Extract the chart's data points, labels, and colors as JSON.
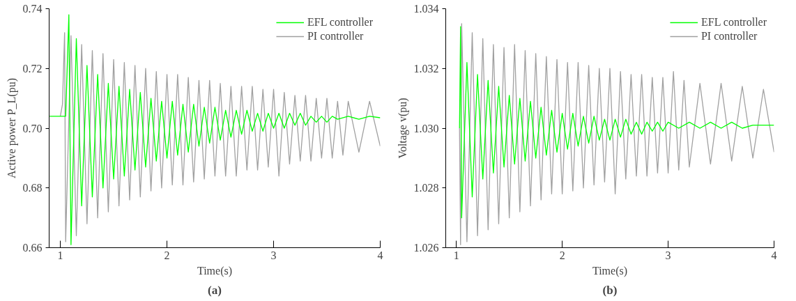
{
  "chart_data": [
    {
      "type": "line",
      "xlabel": "Time(s)",
      "ylabel": "Active power P_L(pu)",
      "annotations": [
        "(a)"
      ],
      "xlim": [
        0.895,
        4
      ],
      "xticks": [
        1,
        2,
        3,
        4
      ],
      "ylim": [
        0.66,
        0.74
      ],
      "yticks": [
        {
          "value": 0.66,
          "label": "0.66"
        },
        {
          "value": 0.68,
          "label": "0.68"
        },
        {
          "value": 0.7,
          "label": "0.70"
        },
        {
          "value": 0.72,
          "label": "0.72"
        },
        {
          "value": 0.74,
          "label": "0.74"
        }
      ],
      "grid": false,
      "legend": "top right",
      "line_style": "solid",
      "marker": "none",
      "series": [
        {
          "name": "EFL controller",
          "color": "#00ff00",
          "x": [
            0.9,
            1.0,
            1.05,
            1.08,
            1.1,
            1.15,
            1.2,
            1.25,
            1.3,
            1.35,
            1.4,
            1.45,
            1.5,
            1.55,
            1.6,
            1.65,
            1.7,
            1.75,
            1.8,
            1.85,
            1.9,
            1.95,
            2.0,
            2.05,
            2.1,
            2.15,
            2.2,
            2.25,
            2.3,
            2.35,
            2.4,
            2.45,
            2.5,
            2.55,
            2.6,
            2.65,
            2.7,
            2.75,
            2.8,
            2.85,
            2.9,
            2.95,
            3.0,
            3.05,
            3.1,
            3.15,
            3.2,
            3.25,
            3.3,
            3.35,
            3.4,
            3.45,
            3.5,
            3.55,
            3.6,
            3.7,
            3.8,
            3.9,
            4.0
          ],
          "values": [
            0.704,
            0.704,
            0.704,
            0.738,
            0.661,
            0.73,
            0.674,
            0.721,
            0.677,
            0.718,
            0.68,
            0.715,
            0.683,
            0.714,
            0.684,
            0.713,
            0.686,
            0.712,
            0.687,
            0.71,
            0.689,
            0.709,
            0.69,
            0.709,
            0.691,
            0.708,
            0.692,
            0.708,
            0.694,
            0.707,
            0.695,
            0.707,
            0.696,
            0.706,
            0.697,
            0.706,
            0.698,
            0.706,
            0.699,
            0.705,
            0.699,
            0.705,
            0.7,
            0.705,
            0.7,
            0.705,
            0.701,
            0.705,
            0.701,
            0.704,
            0.702,
            0.704,
            0.702,
            0.704,
            0.703,
            0.704,
            0.703,
            0.704,
            0.7035
          ]
        },
        {
          "name": "PI controller",
          "color": "#a0a0a0",
          "x": [
            1.0,
            1.02,
            1.04,
            1.05,
            1.1,
            1.15,
            1.2,
            1.25,
            1.3,
            1.35,
            1.4,
            1.45,
            1.5,
            1.55,
            1.6,
            1.65,
            1.7,
            1.75,
            1.8,
            1.85,
            1.9,
            1.95,
            2.0,
            2.05,
            2.1,
            2.15,
            2.2,
            2.25,
            2.3,
            2.35,
            2.4,
            2.45,
            2.5,
            2.55,
            2.6,
            2.65,
            2.7,
            2.75,
            2.8,
            2.85,
            2.9,
            2.95,
            3.0,
            3.05,
            3.1,
            3.15,
            3.2,
            3.25,
            3.3,
            3.35,
            3.4,
            3.45,
            3.5,
            3.55,
            3.6,
            3.65,
            3.7,
            3.8,
            3.9,
            4.0
          ],
          "values": [
            0.704,
            0.708,
            0.732,
            0.662,
            0.731,
            0.664,
            0.728,
            0.668,
            0.726,
            0.67,
            0.725,
            0.672,
            0.723,
            0.674,
            0.722,
            0.676,
            0.721,
            0.677,
            0.72,
            0.679,
            0.719,
            0.68,
            0.718,
            0.681,
            0.718,
            0.681,
            0.717,
            0.682,
            0.716,
            0.683,
            0.716,
            0.684,
            0.715,
            0.684,
            0.714,
            0.684,
            0.714,
            0.686,
            0.714,
            0.686,
            0.713,
            0.687,
            0.713,
            0.684,
            0.712,
            0.688,
            0.711,
            0.689,
            0.711,
            0.689,
            0.71,
            0.69,
            0.71,
            0.69,
            0.709,
            0.691,
            0.709,
            0.692,
            0.709,
            0.694
          ]
        }
      ]
    },
    {
      "type": "line",
      "xlabel": "Time(s)",
      "ylabel": "Voltage v(pu)",
      "annotations": [
        "(b)"
      ],
      "xlim": [
        0.9,
        4
      ],
      "xticks": [
        1,
        2,
        3,
        4
      ],
      "ylim": [
        1.026,
        1.034
      ],
      "yticks": [
        {
          "value": 1.026,
          "label": "1.026"
        },
        {
          "value": 1.028,
          "label": "1.028"
        },
        {
          "value": 1.03,
          "label": "1.030"
        },
        {
          "value": 1.032,
          "label": "1.032"
        },
        {
          "value": 1.034,
          "label": "1.034"
        }
      ],
      "grid": false,
      "legend": "top right",
      "line_style": "solid",
      "marker": "none",
      "series": [
        {
          "name": "EFL controller",
          "color": "#00ff00",
          "x": [
            1.03,
            1.04,
            1.05,
            1.1,
            1.15,
            1.2,
            1.25,
            1.3,
            1.35,
            1.4,
            1.45,
            1.5,
            1.55,
            1.6,
            1.65,
            1.7,
            1.75,
            1.8,
            1.85,
            1.9,
            1.95,
            2.0,
            2.05,
            2.1,
            2.15,
            2.2,
            2.25,
            2.3,
            2.35,
            2.4,
            2.45,
            2.5,
            2.55,
            2.6,
            2.65,
            2.7,
            2.75,
            2.8,
            2.85,
            2.9,
            2.95,
            3.0,
            3.1,
            3.2,
            3.3,
            3.4,
            3.5,
            3.6,
            3.7,
            3.8,
            3.9,
            4.0
          ],
          "values": [
            1.03,
            1.0334,
            1.027,
            1.0322,
            1.0277,
            1.0318,
            1.0283,
            1.0316,
            1.0285,
            1.0314,
            1.0287,
            1.0311,
            1.0288,
            1.031,
            1.0289,
            1.0309,
            1.029,
            1.0307,
            1.0291,
            1.0306,
            1.0292,
            1.0305,
            1.0293,
            1.0305,
            1.0294,
            1.0304,
            1.0295,
            1.0304,
            1.0296,
            1.0303,
            1.0296,
            1.0303,
            1.0297,
            1.0303,
            1.0298,
            1.0302,
            1.0298,
            1.0302,
            1.0299,
            1.0302,
            1.0299,
            1.0302,
            1.03,
            1.0302,
            1.03,
            1.0302,
            1.03,
            1.0302,
            1.03,
            1.0301,
            1.0301,
            1.0301
          ]
        },
        {
          "name": "PI controller",
          "color": "#a0a0a0",
          "x": [
            1.03,
            1.04,
            1.05,
            1.1,
            1.15,
            1.2,
            1.25,
            1.3,
            1.35,
            1.4,
            1.45,
            1.5,
            1.55,
            1.6,
            1.65,
            1.7,
            1.75,
            1.8,
            1.85,
            1.9,
            1.95,
            2.0,
            2.05,
            2.1,
            2.15,
            2.2,
            2.25,
            2.3,
            2.35,
            2.4,
            2.45,
            2.5,
            2.55,
            2.6,
            2.65,
            2.7,
            2.75,
            2.8,
            2.85,
            2.9,
            2.95,
            3.0,
            3.05,
            3.1,
            3.15,
            3.2,
            3.3,
            3.4,
            3.5,
            3.6,
            3.7,
            3.8,
            3.9,
            4.0
          ],
          "values": [
            1.03,
            1.0261,
            1.0335,
            1.0262,
            1.0332,
            1.0264,
            1.033,
            1.0266,
            1.0328,
            1.0268,
            1.0327,
            1.027,
            1.0328,
            1.0272,
            1.0326,
            1.0274,
            1.0325,
            1.0276,
            1.0324,
            1.0278,
            1.0323,
            1.0278,
            1.0322,
            1.0279,
            1.0322,
            1.028,
            1.0321,
            1.0281,
            1.032,
            1.0282,
            1.032,
            1.0278,
            1.0319,
            1.0283,
            1.0318,
            1.0284,
            1.0318,
            1.0284,
            1.0317,
            1.0285,
            1.0317,
            1.0285,
            1.0319,
            1.0286,
            1.0316,
            1.0287,
            1.0315,
            1.0288,
            1.0315,
            1.0289,
            1.0314,
            1.029,
            1.0313,
            1.0292
          ]
        }
      ]
    }
  ]
}
